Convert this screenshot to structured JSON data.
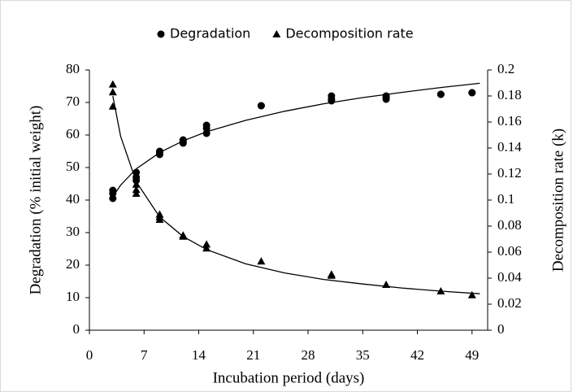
{
  "chart_data": {
    "type": "scatter",
    "xlabel": "Incubation period (days)",
    "ylabel": "Degradation (% initial weight)",
    "y2label": "Decomposition rate (k)",
    "xlim": [
      0,
      51
    ],
    "xticks": [
      0,
      7,
      14,
      21,
      28,
      35,
      42,
      49
    ],
    "ylim": [
      0,
      80
    ],
    "yticks": [
      0,
      10,
      20,
      30,
      40,
      50,
      60,
      70,
      80
    ],
    "y2lim": [
      0,
      0.2
    ],
    "y2ticks": [
      0,
      0.02,
      0.04,
      0.06,
      0.08,
      0.1,
      0.12,
      0.14,
      0.16,
      0.18,
      0.2
    ],
    "grid": false,
    "legend": "top",
    "series": [
      {
        "name": "Degradation",
        "color": "#000000",
        "marker": "circle",
        "axis": "y",
        "x": [
          3,
          3,
          3,
          6,
          6,
          6,
          9,
          9,
          9,
          12,
          12,
          12,
          15,
          15,
          15,
          22,
          22,
          31,
          31,
          31,
          38,
          38,
          38,
          45,
          45,
          49,
          49
        ],
        "values": [
          43,
          42,
          40.5,
          48.5,
          47,
          46,
          55,
          54,
          54.5,
          58.5,
          58,
          57.5,
          63,
          62,
          60.5,
          69,
          69,
          72,
          71,
          70.5,
          72,
          71.5,
          71,
          72.5,
          72.5,
          73,
          73
        ]
      },
      {
        "name": "Decomposition rate",
        "color": "#000000",
        "marker": "triangle",
        "axis": "y2",
        "x": [
          3,
          3,
          3,
          6,
          6,
          6,
          9,
          9,
          9,
          12,
          12,
          15,
          15,
          22,
          31,
          31,
          38,
          45,
          49
        ],
        "values": [
          0.189,
          0.183,
          0.172,
          0.112,
          0.108,
          0.105,
          0.089,
          0.087,
          0.085,
          0.073,
          0.072,
          0.066,
          0.063,
          0.053,
          0.043,
          0.042,
          0.035,
          0.03,
          0.027
        ]
      },
      {
        "color": "#000000",
        "marker": "line",
        "axis": "y",
        "x": [
          3,
          4,
          6,
          9,
          12,
          15,
          20,
          25,
          30,
          35,
          40,
          45,
          50
        ],
        "values": [
          41.0,
          44.6,
          49.6,
          54.6,
          58.2,
          61.0,
          64.5,
          67.3,
          69.6,
          71.5,
          73.1,
          74.6,
          75.9
        ]
      },
      {
        "color": "#000000",
        "marker": "line",
        "axis": "y2",
        "x": [
          3,
          4,
          6,
          9,
          12,
          15,
          20,
          25,
          30,
          35,
          40,
          45,
          50
        ],
        "values": [
          0.18,
          0.149,
          0.114,
          0.087,
          0.072,
          0.062,
          0.051,
          0.044,
          0.039,
          0.0355,
          0.0324,
          0.03,
          0.028
        ]
      }
    ]
  }
}
